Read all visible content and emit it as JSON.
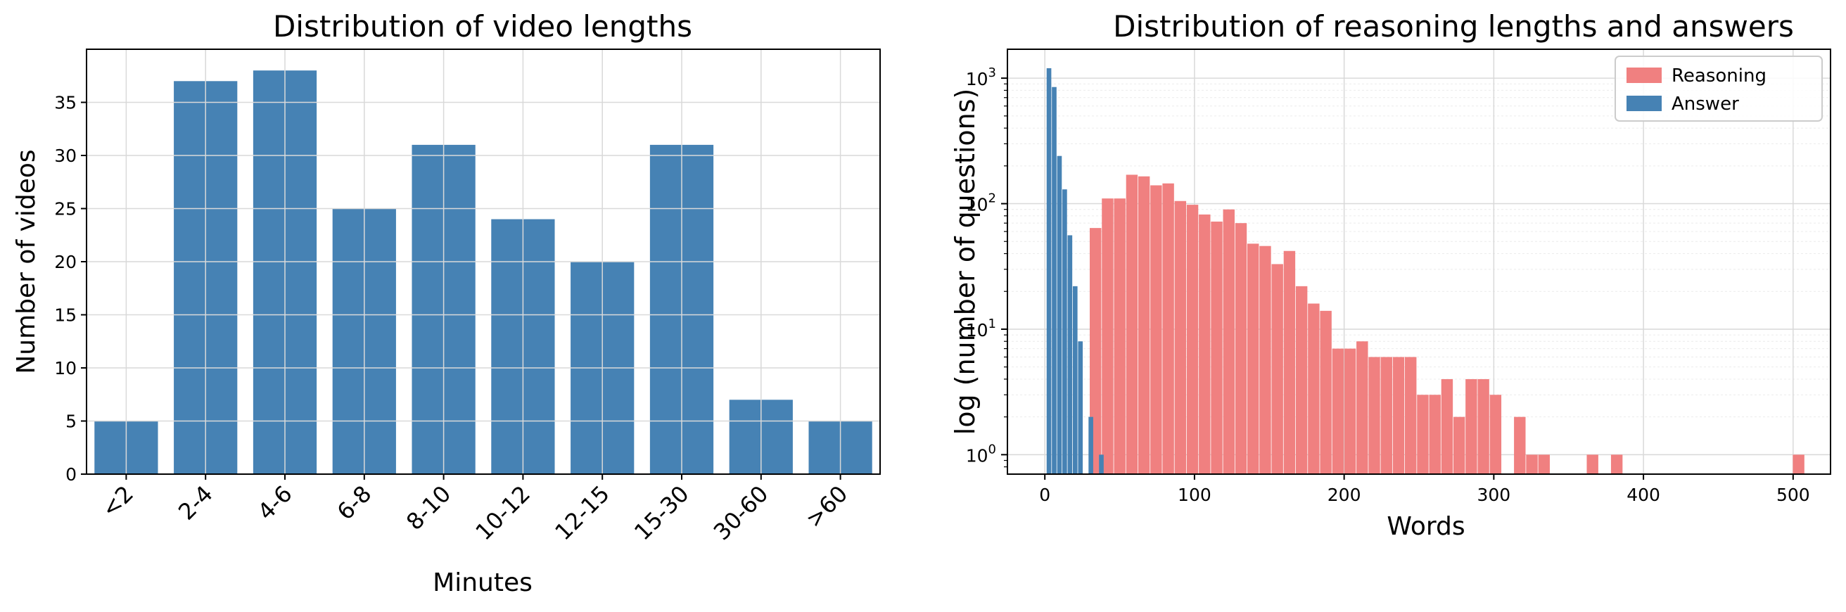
{
  "chart_data": [
    {
      "type": "bar",
      "title": "Distribution of video lengths",
      "xlabel": "Minutes",
      "ylabel": "Number of videos",
      "categories": [
        "<2",
        "2-4",
        "4-6",
        "6-8",
        "8-10",
        "10-12",
        "12-15",
        "15-30",
        "30-60",
        ">60"
      ],
      "values": [
        5,
        37,
        38,
        25,
        31,
        24,
        20,
        31,
        7,
        5
      ],
      "ylim": [
        0,
        40
      ],
      "yticks": [
        0,
        5,
        10,
        15,
        20,
        25,
        30,
        35
      ],
      "grid": true,
      "bar_color": "#4682b4"
    },
    {
      "type": "histogram",
      "title": "Distribution of reasoning lengths and answers",
      "xlabel": "Words",
      "ylabel": "log (number of questions)",
      "yscale": "log",
      "xlim": [
        -25,
        525
      ],
      "ylim": [
        0.7,
        1700
      ],
      "xticks": [
        0,
        100,
        200,
        300,
        400,
        500
      ],
      "yticks": [
        {
          "value": 1,
          "base": "10",
          "exp": "0"
        },
        {
          "value": 10,
          "base": "10",
          "exp": "1"
        },
        {
          "value": 100,
          "base": "10",
          "exp": "2"
        },
        {
          "value": 1000,
          "base": "10",
          "exp": "3"
        }
      ],
      "grid": true,
      "legend_position": "top-right",
      "series": [
        {
          "name": "Reasoning",
          "color": "#f08080",
          "bin_width": 8.1,
          "bins": [
            {
              "x": 30,
              "count": 64
            },
            {
              "x": 38.1,
              "count": 110
            },
            {
              "x": 46.2,
              "count": 110
            },
            {
              "x": 54.3,
              "count": 170
            },
            {
              "x": 62.4,
              "count": 165
            },
            {
              "x": 70.5,
              "count": 140
            },
            {
              "x": 78.6,
              "count": 145
            },
            {
              "x": 86.7,
              "count": 105
            },
            {
              "x": 94.8,
              "count": 98
            },
            {
              "x": 102.9,
              "count": 82
            },
            {
              "x": 111,
              "count": 72
            },
            {
              "x": 119.1,
              "count": 90
            },
            {
              "x": 127.2,
              "count": 70
            },
            {
              "x": 135.3,
              "count": 48
            },
            {
              "x": 143.4,
              "count": 46
            },
            {
              "x": 151.5,
              "count": 33
            },
            {
              "x": 159.6,
              "count": 42
            },
            {
              "x": 167.7,
              "count": 22
            },
            {
              "x": 175.8,
              "count": 16
            },
            {
              "x": 183.9,
              "count": 14
            },
            {
              "x": 192,
              "count": 7
            },
            {
              "x": 200.1,
              "count": 7
            },
            {
              "x": 208.2,
              "count": 8
            },
            {
              "x": 216.3,
              "count": 6
            },
            {
              "x": 224.4,
              "count": 6
            },
            {
              "x": 232.5,
              "count": 6
            },
            {
              "x": 240.6,
              "count": 6
            },
            {
              "x": 248.7,
              "count": 3
            },
            {
              "x": 256.8,
              "count": 3
            },
            {
              "x": 264.9,
              "count": 4
            },
            {
              "x": 273,
              "count": 2
            },
            {
              "x": 281.1,
              "count": 4
            },
            {
              "x": 289.2,
              "count": 4
            },
            {
              "x": 297.3,
              "count": 3
            },
            {
              "x": 313.5,
              "count": 2
            },
            {
              "x": 321.6,
              "count": 1
            },
            {
              "x": 329.7,
              "count": 1
            },
            {
              "x": 362.1,
              "count": 1
            },
            {
              "x": 378.3,
              "count": 1
            },
            {
              "x": 499.8,
              "count": 1
            }
          ]
        },
        {
          "name": "Answer",
          "color": "#4682b4",
          "bin_width": 3.5,
          "bins": [
            {
              "x": 1.2,
              "count": 1200
            },
            {
              "x": 4.7,
              "count": 850
            },
            {
              "x": 8.2,
              "count": 240
            },
            {
              "x": 11.7,
              "count": 130
            },
            {
              "x": 15.2,
              "count": 56
            },
            {
              "x": 18.7,
              "count": 22
            },
            {
              "x": 22.2,
              "count": 8
            },
            {
              "x": 29.2,
              "count": 2
            },
            {
              "x": 36.2,
              "count": 1
            }
          ]
        }
      ]
    }
  ]
}
